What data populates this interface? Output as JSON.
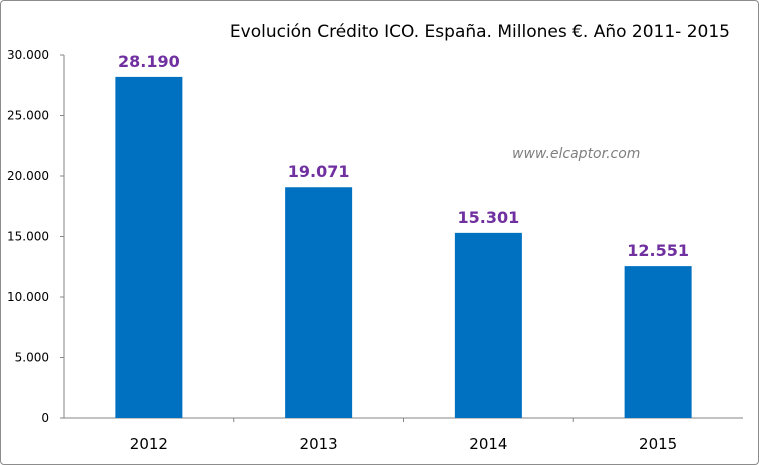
{
  "chart_data": {
    "type": "bar",
    "title": "Evolución Crédito ICO. España. Millones €. Año 2011- 2015",
    "watermark": "www.elcaptor.com",
    "categories": [
      "2012",
      "2013",
      "2014",
      "2015"
    ],
    "values": [
      28190,
      19071,
      15301,
      12551
    ],
    "data_labels": [
      "28.190",
      "19.071",
      "15.301",
      "12.551"
    ],
    "yticks": [
      0,
      5000,
      10000,
      15000,
      20000,
      25000,
      30000
    ],
    "ytick_labels": [
      "0",
      "5.000",
      "10.000",
      "15.000",
      "20.000",
      "25.000",
      "30.000"
    ],
    "ylim": [
      0,
      30000
    ],
    "xlabel": "",
    "ylabel": "",
    "grid": false,
    "colors": {
      "bar": "#0070c0",
      "data_label": "#7030a0",
      "axis": "#868686"
    }
  }
}
